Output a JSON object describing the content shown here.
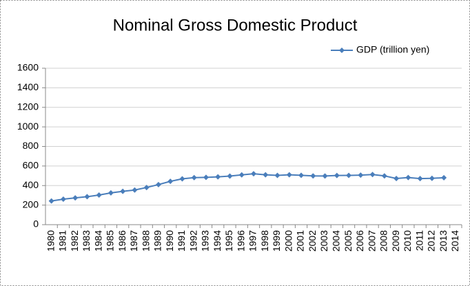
{
  "chart_data": {
    "type": "line",
    "title": "Nominal Gross Domestic Product",
    "categories": [
      "1980",
      "1981",
      "1982",
      "1983",
      "1984",
      "1985",
      "1986",
      "1987",
      "1988",
      "1989",
      "1990",
      "1991",
      "1992",
      "1993",
      "1994",
      "1995",
      "1996",
      "1997",
      "1998",
      "1999",
      "2000",
      "2001",
      "2002",
      "2003",
      "2004",
      "2005",
      "2006",
      "2007",
      "2008",
      "2009",
      "2010",
      "2011",
      "2012",
      "2013",
      "2014"
    ],
    "series": [
      {
        "name": "GDP (trillion yen)",
        "color": "#4a7ebb",
        "values": [
          242,
          261,
          274,
          286,
          303,
          325,
          341,
          354,
          380,
          410,
          443,
          469,
          481,
          484,
          489,
          497,
          509,
          521,
          510,
          504,
          510,
          505,
          499,
          498,
          503,
          504,
          507,
          513,
          499,
          472,
          482,
          471,
          474,
          480,
          null
        ]
      }
    ],
    "ylim": [
      0,
      1600
    ],
    "yticks": [
      0,
      200,
      400,
      600,
      800,
      1000,
      1200,
      1400,
      1600
    ],
    "grid": true,
    "legend": "top-right"
  }
}
